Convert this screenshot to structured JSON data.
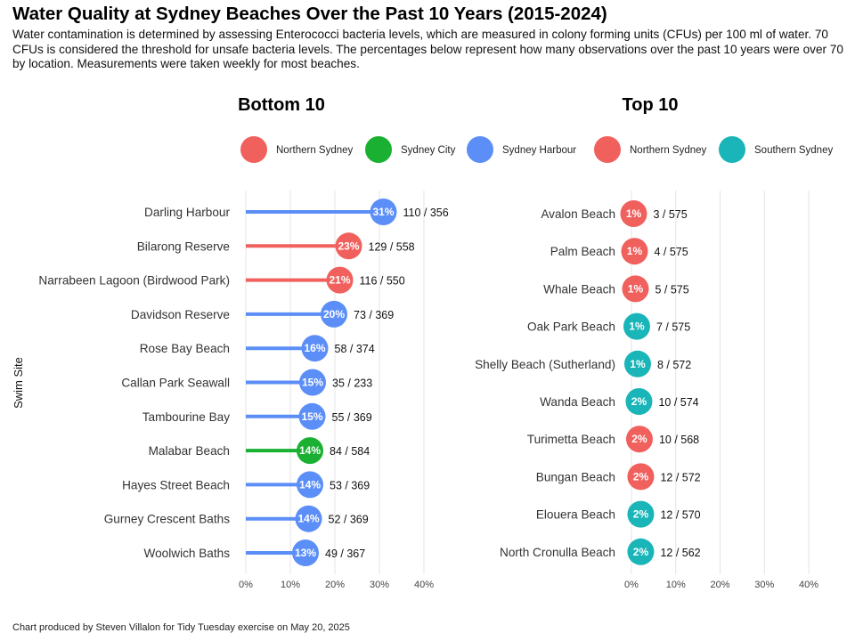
{
  "title": "Water Quality at Sydney Beaches Over the Past 10 Years (2015-2024)",
  "subtitle": "Water contamination is determined by assessing Enterococci bacteria levels, which are measured in colony forming units (CFUs) per 100 ml of water. 70 CFUs is considered the threshold for unsafe bacteria levels. The percentages below represent how many observations over the past 10 years were over 70 by location. Measurements were taken weekly for most beaches.",
  "caption": "Chart produced by Steven Villalon for Tidy Tuesday exercise on May 20, 2025",
  "colors": {
    "Northern Sydney": "#f0605d",
    "Sydney City": "#1ab032",
    "Sydney Harbour": "#5b8ef7",
    "Southern Sydney": "#19b5b8"
  },
  "chart_data": [
    {
      "type": "lollipop",
      "title": "Bottom 10",
      "ylabel": "Swim Site",
      "xlabel": "",
      "xlim": [
        0,
        0.4
      ],
      "x_ticks": [
        0,
        0.1,
        0.2,
        0.3,
        0.4
      ],
      "x_tick_labels": [
        "0%",
        "10%",
        "20%",
        "30%",
        "40%"
      ],
      "legend": [
        "Northern Sydney",
        "Sydney City",
        "Sydney Harbour"
      ],
      "legend_position": "top",
      "rows": [
        {
          "site": "Darling Harbour",
          "region": "Sydney Harbour",
          "value": 0.309,
          "pct_label": "31%",
          "count_label": "110 / 356"
        },
        {
          "site": "Bilarong Reserve",
          "region": "Northern Sydney",
          "value": 0.231,
          "pct_label": "23%",
          "count_label": "129 / 558"
        },
        {
          "site": "Narrabeen Lagoon (Birdwood Park)",
          "region": "Northern Sydney",
          "value": 0.211,
          "pct_label": "21%",
          "count_label": "116 / 550"
        },
        {
          "site": "Davidson Reserve",
          "region": "Sydney Harbour",
          "value": 0.198,
          "pct_label": "20%",
          "count_label": "73 / 369"
        },
        {
          "site": "Rose Bay Beach",
          "region": "Sydney Harbour",
          "value": 0.155,
          "pct_label": "16%",
          "count_label": "58 / 374"
        },
        {
          "site": "Callan Park Seawall",
          "region": "Sydney Harbour",
          "value": 0.15,
          "pct_label": "15%",
          "count_label": "35 / 233"
        },
        {
          "site": "Tambourine Bay",
          "region": "Sydney Harbour",
          "value": 0.149,
          "pct_label": "15%",
          "count_label": "55 / 369"
        },
        {
          "site": "Malabar Beach",
          "region": "Sydney City",
          "value": 0.144,
          "pct_label": "14%",
          "count_label": "84 / 584"
        },
        {
          "site": "Hayes Street Beach",
          "region": "Sydney Harbour",
          "value": 0.144,
          "pct_label": "14%",
          "count_label": "53 / 369"
        },
        {
          "site": "Gurney Crescent Baths",
          "region": "Sydney Harbour",
          "value": 0.141,
          "pct_label": "14%",
          "count_label": "52 / 369"
        },
        {
          "site": "Woolwich Baths",
          "region": "Sydney Harbour",
          "value": 0.134,
          "pct_label": "13%",
          "count_label": "49 / 367"
        }
      ]
    },
    {
      "type": "dot",
      "title": "Top 10",
      "xlabel": "",
      "xlim": [
        0,
        0.4
      ],
      "x_ticks": [
        0,
        0.1,
        0.2,
        0.3,
        0.4
      ],
      "x_tick_labels": [
        "0%",
        "10%",
        "20%",
        "30%",
        "40%"
      ],
      "legend": [
        "Northern Sydney",
        "Southern Sydney"
      ],
      "legend_position": "top",
      "rows": [
        {
          "site": "Avalon Beach",
          "region": "Northern Sydney",
          "value": 0.005,
          "pct_label": "1%",
          "count_label": "3 / 575"
        },
        {
          "site": "Palm Beach",
          "region": "Northern Sydney",
          "value": 0.007,
          "pct_label": "1%",
          "count_label": "4 / 575"
        },
        {
          "site": "Whale Beach",
          "region": "Northern Sydney",
          "value": 0.009,
          "pct_label": "1%",
          "count_label": "5 / 575"
        },
        {
          "site": "Oak Park Beach",
          "region": "Southern Sydney",
          "value": 0.012,
          "pct_label": "1%",
          "count_label": "7 / 575"
        },
        {
          "site": "Shelly Beach (Sutherland)",
          "region": "Southern Sydney",
          "value": 0.014,
          "pct_label": "1%",
          "count_label": "8 / 572"
        },
        {
          "site": "Wanda Beach",
          "region": "Southern Sydney",
          "value": 0.017,
          "pct_label": "2%",
          "count_label": "10 / 574"
        },
        {
          "site": "Turimetta Beach",
          "region": "Northern Sydney",
          "value": 0.018,
          "pct_label": "2%",
          "count_label": "10 / 568"
        },
        {
          "site": "Bungan Beach",
          "region": "Northern Sydney",
          "value": 0.021,
          "pct_label": "2%",
          "count_label": "12 / 572"
        },
        {
          "site": "Elouera Beach",
          "region": "Southern Sydney",
          "value": 0.021,
          "pct_label": "2%",
          "count_label": "12 / 570"
        },
        {
          "site": "North Cronulla Beach",
          "region": "Southern Sydney",
          "value": 0.021,
          "pct_label": "2%",
          "count_label": "12 / 562"
        }
      ]
    }
  ]
}
